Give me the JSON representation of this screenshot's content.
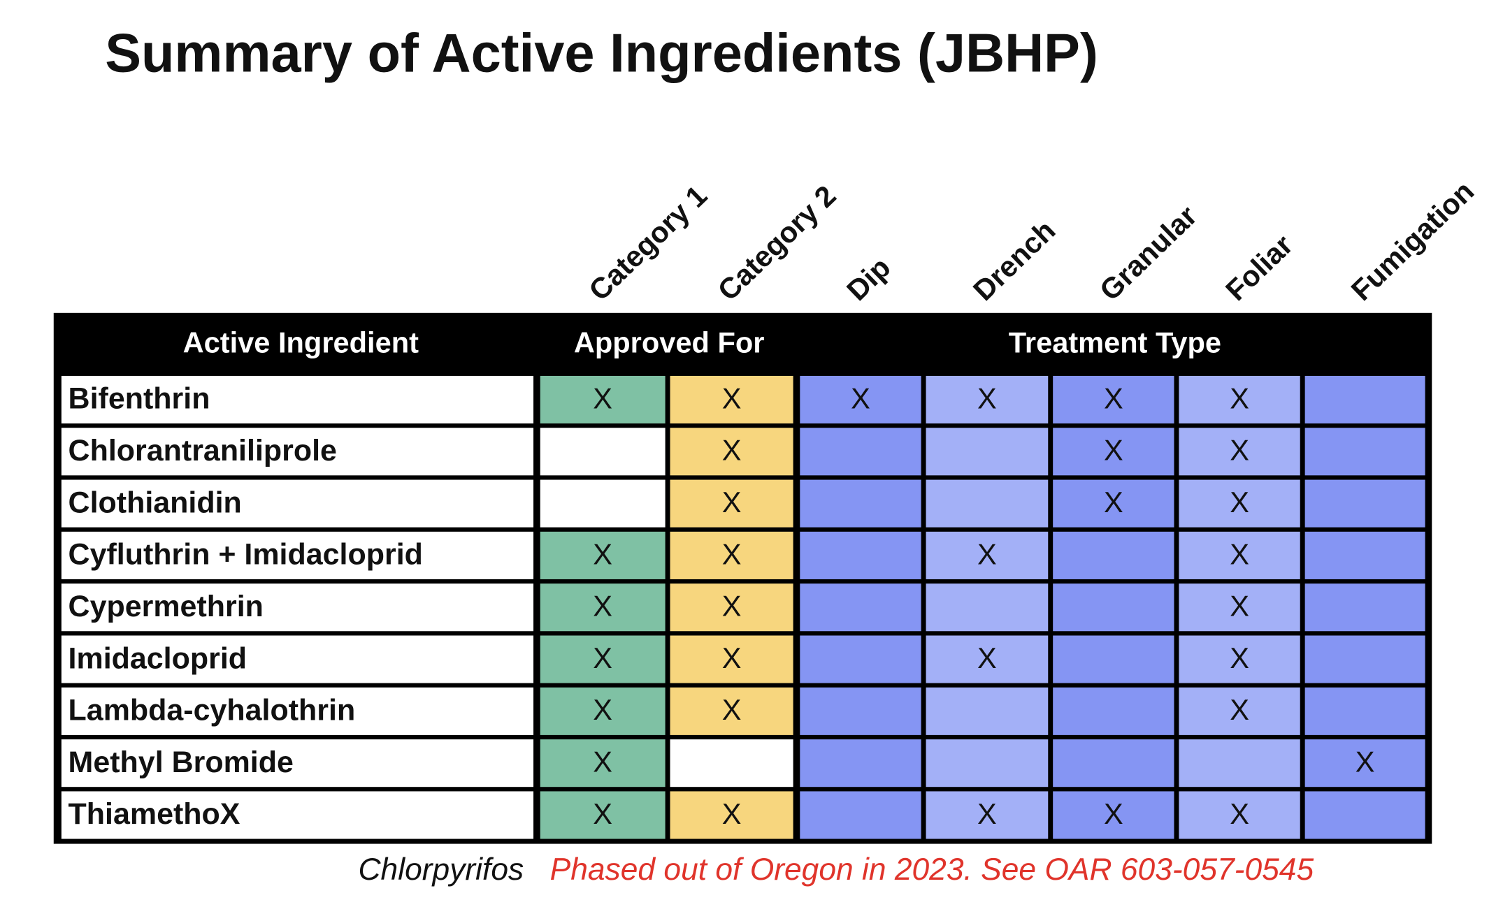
{
  "title": "Summary of Active Ingredients (JBHP)",
  "column_labels": [
    "Category 1",
    "Category 2",
    "Dip",
    "Drench",
    "Granular",
    "Foliar",
    "Fumigation"
  ],
  "group_headers": [
    "Active Ingredient",
    "Approved For",
    "Treatment Type"
  ],
  "rows": [
    {
      "name": "Bifenthrin",
      "cells": [
        "X",
        "X",
        "X",
        "X",
        "X",
        "X",
        null
      ]
    },
    {
      "name": "Chlorantraniliprole",
      "cells": [
        null,
        "X",
        null,
        null,
        "X",
        "X",
        null
      ]
    },
    {
      "name": "Clothianidin",
      "cells": [
        null,
        "X",
        null,
        null,
        "X",
        "X",
        null
      ]
    },
    {
      "name": "Cyfluthrin + Imidacloprid",
      "cells": [
        "X",
        "X",
        null,
        "X",
        null,
        "X",
        null
      ]
    },
    {
      "name": "Cypermethrin",
      "cells": [
        "X",
        "X",
        null,
        null,
        null,
        "X",
        null
      ]
    },
    {
      "name": "Imidacloprid",
      "cells": [
        "X",
        "X",
        null,
        "X",
        null,
        "X",
        null
      ]
    },
    {
      "name": "Lambda-cyhalothrin",
      "cells": [
        "X",
        "X",
        null,
        null,
        null,
        "X",
        null
      ]
    },
    {
      "name": "Methyl Bromide",
      "cells": [
        "X",
        null,
        null,
        null,
        null,
        null,
        "X"
      ]
    },
    {
      "name": "ThiamethoX",
      "cells": [
        "X",
        "X",
        null,
        "X",
        "X",
        "X",
        null
      ]
    }
  ],
  "footnote": {
    "name": "Chlorpyrifos",
    "note": "Phased out of Oregon in 2023. See OAR 603-057-0545"
  }
}
